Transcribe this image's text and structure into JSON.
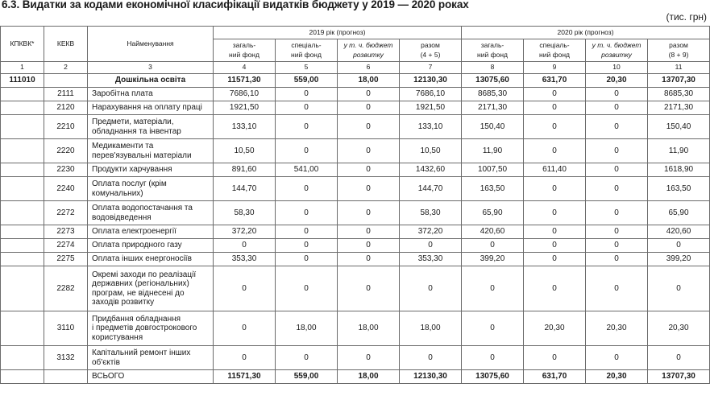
{
  "title": "6.3. Видатки за кодами економічної класифікації видатків бюджету у 2019 — 2020 роках",
  "unit": "(тис. грн)",
  "headers": {
    "kpkvk": "КПКВК*",
    "kekv": "КЕКВ",
    "name": "Найменування",
    "y2019": "2019 рік (прогноз)",
    "y2020": "2020 рік (прогноз)",
    "general": "загаль-\nний фонд",
    "special": "спеціаль-\nний фонд",
    "budget_dev": "у т. ч. бюджет\nрозвитку",
    "total_2019": "разом\n(4 + 5)",
    "total_2020": "разом\n(8 + 9)"
  },
  "col_numbers": [
    "1",
    "2",
    "3",
    "4",
    "5",
    "6",
    "7",
    "8",
    "9",
    "10",
    "11"
  ],
  "rows": [
    {
      "kpkvk": "111010",
      "kekv": "",
      "name": "Дошкільна освіта",
      "v": [
        "11571,30",
        "559,00",
        "18,00",
        "12130,30",
        "13075,60",
        "631,70",
        "20,30",
        "13707,30"
      ]
    },
    {
      "kpkvk": "",
      "kekv": "2111",
      "name": "Заробітна плата",
      "v": [
        "7686,10",
        "0",
        "0",
        "7686,10",
        "8685,30",
        "0",
        "0",
        "8685,30"
      ]
    },
    {
      "kpkvk": "",
      "kekv": "2120",
      "name": "Нарахування на оплату праці",
      "v": [
        "1921,50",
        "0",
        "0",
        "1921,50",
        "2171,30",
        "0",
        "0",
        "2171,30"
      ]
    },
    {
      "kpkvk": "",
      "kekv": "2210",
      "name": "Предмети, матеріали,\nобладнання та інвентар",
      "v": [
        "133,10",
        "0",
        "0",
        "133,10",
        "150,40",
        "0",
        "0",
        "150,40"
      ]
    },
    {
      "kpkvk": "",
      "kekv": "2220",
      "name": "Медикаменти та\nперев'язувальні матеріали",
      "v": [
        "10,50",
        "0",
        "0",
        "10,50",
        "11,90",
        "0",
        "0",
        "11,90"
      ]
    },
    {
      "kpkvk": "",
      "kekv": "2230",
      "name": "Продукти харчування",
      "v": [
        "891,60",
        "541,00",
        "0",
        "1432,60",
        "1007,50",
        "611,40",
        "0",
        "1618,90"
      ]
    },
    {
      "kpkvk": "",
      "kekv": "2240",
      "name": "Оплата послуг (крім\nкомунальних)",
      "v": [
        "144,70",
        "0",
        "0",
        "144,70",
        "163,50",
        "0",
        "0",
        "163,50"
      ]
    },
    {
      "kpkvk": "",
      "kekv": "2272",
      "name": "Оплата водопостачання та\nводовідведення",
      "v": [
        "58,30",
        "0",
        "0",
        "58,30",
        "65,90",
        "0",
        "0",
        "65,90"
      ]
    },
    {
      "kpkvk": "",
      "kekv": "2273",
      "name": "Оплата електроенергії",
      "v": [
        "372,20",
        "0",
        "0",
        "372,20",
        "420,60",
        "0",
        "0",
        "420,60"
      ]
    },
    {
      "kpkvk": "",
      "kekv": "2274",
      "name": "Оплата природного газу",
      "v": [
        "0",
        "0",
        "0",
        "0",
        "0",
        "0",
        "0",
        "0"
      ]
    },
    {
      "kpkvk": "",
      "kekv": "2275",
      "name": "Оплата інших енергоносіїв",
      "v": [
        "353,30",
        "0",
        "0",
        "353,30",
        "399,20",
        "0",
        "0",
        "399,20"
      ]
    },
    {
      "kpkvk": "",
      "kekv": "2282",
      "name": "Окремі заходи по реалізації\nдержавних (регіональних)\nпрограм, не віднесені до\nзаходів розвитку",
      "v": [
        "0",
        "0",
        "0",
        "0",
        "0",
        "0",
        "0",
        "0"
      ]
    },
    {
      "kpkvk": "",
      "kekv": "3110",
      "name": "Придбання обладнання\nі предметів довгострокового\nкористування",
      "v": [
        "0",
        "18,00",
        "18,00",
        "18,00",
        "0",
        "20,30",
        "20,30",
        "20,30"
      ]
    },
    {
      "kpkvk": "",
      "kekv": "3132",
      "name": "Капітальний ремонт інших\nоб'єктів",
      "v": [
        "0",
        "0",
        "0",
        "0",
        "0",
        "0",
        "0",
        "0"
      ]
    }
  ],
  "total": {
    "name": "ВСЬОГО",
    "v": [
      "11571,30",
      "559,00",
      "18,00",
      "12130,30",
      "13075,60",
      "631,70",
      "20,30",
      "13707,30"
    ]
  }
}
